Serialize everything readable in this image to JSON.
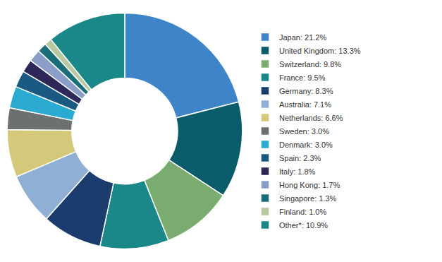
{
  "chart_data": {
    "type": "donut",
    "categories": [
      "Japan: 21.2%",
      "United Kingdom: 13.3%",
      "Switzerland: 9.8%",
      "France: 9.5%",
      "Germany: 8.3%",
      "Australia: 7.1%",
      "Netherlands: 6.6%",
      "Sweden: 3.0%",
      "Denmark: 3.0%",
      "Spain: 2.3%",
      "Italy: 1.8%",
      "Hong Kong: 1.7%",
      "Singapore: 1.3%",
      "Finland: 1.0%",
      "Other*: 10.9%"
    ],
    "values": [
      21.2,
      13.3,
      9.8,
      9.5,
      8.3,
      7.1,
      6.6,
      3.0,
      3.0,
      2.3,
      1.8,
      1.7,
      1.3,
      1.0,
      10.9
    ],
    "colors": [
      "#3d85c8",
      "#0a5c6b",
      "#7aac70",
      "#1a8888",
      "#1a3d6e",
      "#8fafd4",
      "#d4c87a",
      "#6b7070",
      "#2aaad0",
      "#1a5a82",
      "#2d2857",
      "#8a9ec8",
      "#1a6e78",
      "#b8c8a0",
      "#1a8888"
    ],
    "legend": "right"
  }
}
